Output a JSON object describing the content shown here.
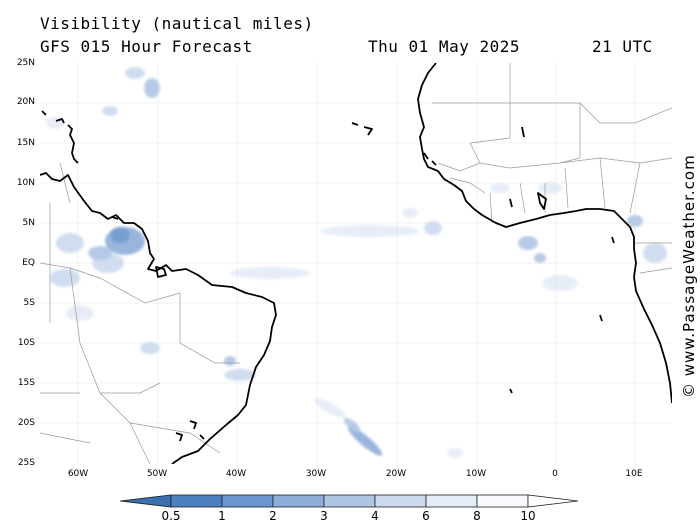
{
  "title": {
    "parameter": "Visibility (nautical miles)",
    "model": "GFS 015 Hour Forecast",
    "date": "Thu 01 May 2025",
    "time": "21 UTC"
  },
  "credit": "© www.PassageWeather.com",
  "latitude_labels": [
    "25N",
    "20N",
    "15N",
    "10N",
    "5N",
    "EQ",
    "5S",
    "10S",
    "15S",
    "20S",
    "25S"
  ],
  "longitude_labels": [
    "60W",
    "50W",
    "40W",
    "30W",
    "20W",
    "10W",
    "0",
    "10E"
  ],
  "colorbar": {
    "labels": [
      "0.5",
      "1",
      "2",
      "3",
      "4",
      "6",
      "8",
      "10"
    ],
    "colors": [
      "#3a6fb2",
      "#4c80c0",
      "#6b95cd",
      "#8eaed9",
      "#aec5e4",
      "#cbdaee",
      "#e4ecf7",
      "#f7f9fd"
    ]
  }
}
